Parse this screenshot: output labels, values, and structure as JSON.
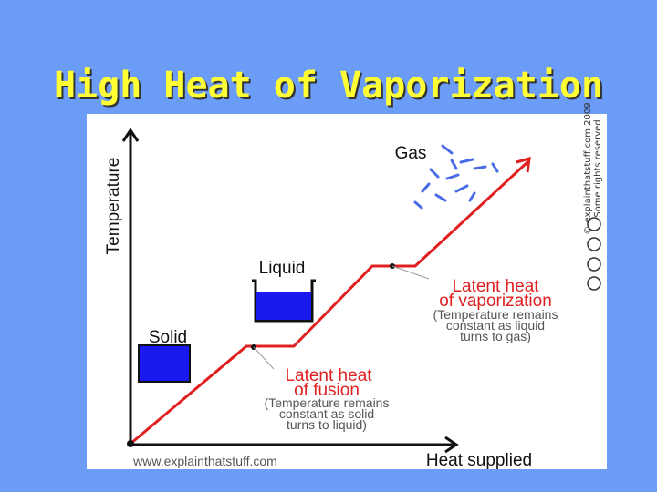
{
  "slide": {
    "title": "High Heat of Vaporization"
  },
  "diagram": {
    "y_axis_label": "Temperature",
    "x_axis_label": "Heat supplied",
    "states": {
      "gas": "Gas",
      "liquid": "Liquid",
      "solid": "Solid"
    },
    "vaporization": {
      "heading": [
        "Latent heat",
        "of vaporization"
      ],
      "note": [
        "(Temperature remains",
        "constant as liquid",
        "turns to gas)"
      ]
    },
    "fusion": {
      "heading": [
        "Latent heat",
        "of fusion"
      ],
      "note": [
        "(Temperature remains",
        "constant as solid",
        "turns to liquid)"
      ]
    },
    "website": "www.explainthatstuff.com",
    "copyright": [
      "© explainthatstuff.com 2009",
      "Some rights reserved"
    ]
  }
}
